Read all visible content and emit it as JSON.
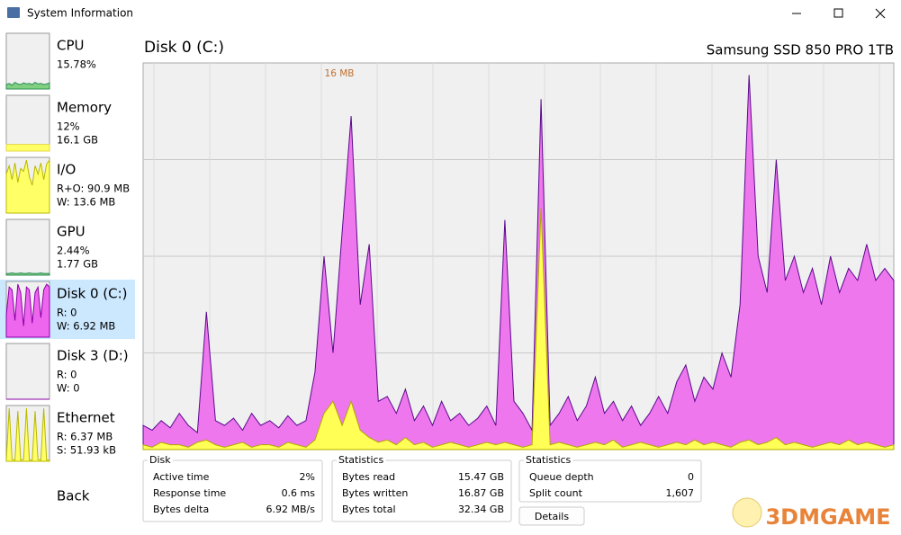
{
  "window_title": "System Information",
  "sidebar": [
    {
      "label": "CPU",
      "lines": [
        "15.78%"
      ],
      "spark_color": "#2e8b57",
      "spark": [
        8,
        10,
        7,
        12,
        9,
        8,
        11,
        9,
        10,
        8,
        12,
        9,
        10,
        8,
        9,
        11
      ]
    },
    {
      "label": "Memory",
      "lines": [
        "12%",
        "16.1 GB"
      ],
      "spark_color": "#e6d84a",
      "spark": [
        12,
        12,
        12,
        12,
        12,
        12,
        12,
        12,
        12,
        12,
        12,
        12,
        12,
        12,
        12,
        12
      ]
    },
    {
      "label": "I/O",
      "lines": [
        "R+O: 90.9 MB",
        "W: 13.6 MB"
      ],
      "spark_color": "#b8b800",
      "spark": [
        70,
        85,
        60,
        90,
        55,
        80,
        75,
        95,
        65,
        50,
        85,
        70,
        90,
        60,
        88,
        95
      ]
    },
    {
      "label": "GPU",
      "lines": [
        "2.44%",
        "1.77 GB"
      ],
      "spark_color": "#2e8b57",
      "spark": [
        3,
        3,
        4,
        3,
        3,
        4,
        3,
        3,
        4,
        3,
        3,
        3,
        4,
        3,
        3,
        3
      ]
    },
    {
      "label": "Disk 0 (C:)",
      "lines": [
        "R: 0",
        "W: 6.92 MB"
      ],
      "spark_color": "#8b00a8",
      "spark": [
        40,
        90,
        85,
        30,
        95,
        80,
        20,
        90,
        85,
        25,
        80,
        90,
        35,
        85,
        95,
        90
      ]
    },
    {
      "label": "Disk 3 (D:)",
      "lines": [
        "R: 0",
        "W: 0"
      ],
      "spark_color": "#8b00a8",
      "spark": [
        0,
        0,
        0,
        0,
        0,
        0,
        0,
        0,
        0,
        0,
        0,
        0,
        0,
        0,
        0,
        0
      ]
    },
    {
      "label": "Ethernet",
      "lines": [
        "R: 6.37 MB",
        "S: 51.93 kB"
      ],
      "spark_color": "#b8b800",
      "spark": [
        2,
        95,
        3,
        2,
        90,
        2,
        3,
        95,
        2,
        2,
        90,
        3,
        2,
        95,
        2,
        2
      ]
    }
  ],
  "selected": 4,
  "back": "Back",
  "device_title": "Disk 0 (C:)",
  "device_name": "Samsung SSD 850 PRO 1TB",
  "graph": {
    "max": {
      "value": 16,
      "label": "16 MB"
    },
    "write_values": [
      1,
      0.8,
      1.2,
      0.9,
      1.5,
      1,
      0.7,
      5.7,
      1.2,
      1,
      1.3,
      0.8,
      1.5,
      1,
      1.2,
      0.9,
      1.4,
      1,
      1.2,
      3.2,
      8,
      4,
      9,
      13.8,
      6,
      8.5,
      2,
      2.2,
      1.5,
      2.5,
      1.2,
      1.8,
      1,
      2,
      1.2,
      1.5,
      1,
      1.3,
      1.8,
      1,
      9.5,
      2,
      1.5,
      0.8,
      14.5,
      1,
      1.5,
      2.2,
      1.2,
      1.8,
      3,
      1.5,
      2,
      1.2,
      1.8,
      1,
      1.5,
      2.2,
      1.5,
      2.8,
      3.5,
      2,
      3,
      2.5,
      4,
      3,
      6,
      15.5,
      8,
      6.5,
      12,
      7,
      8,
      6.5,
      7.5,
      6,
      8,
      6.5,
      7.5,
      7,
      8.5,
      7,
      7.5,
      7
    ],
    "read_values": [
      0.2,
      0.1,
      0.3,
      0.2,
      0.2,
      0.1,
      0.3,
      0.4,
      0.2,
      0.1,
      0.2,
      0.3,
      0.1,
      0.2,
      0.2,
      0.1,
      0.3,
      0.2,
      0.1,
      0.4,
      1.5,
      2,
      1,
      2,
      0.8,
      0.5,
      0.3,
      0.4,
      0.2,
      0.5,
      0.2,
      0.3,
      0.1,
      0.2,
      0.3,
      0.2,
      0.1,
      0.2,
      0.3,
      0.2,
      0.3,
      0.2,
      0.1,
      0.2,
      10,
      0.2,
      0.3,
      0.2,
      0.1,
      0.2,
      0.3,
      0.2,
      0.4,
      0.1,
      0.2,
      0.3,
      0.2,
      0.1,
      0.2,
      0.3,
      0.2,
      0.4,
      0.2,
      0.3,
      0.2,
      0.1,
      0.3,
      0.4,
      0.2,
      0.3,
      0.5,
      0.2,
      0.3,
      0.2,
      0.1,
      0.2,
      0.3,
      0.2,
      0.4,
      0.2,
      0.3,
      0.2,
      0.1,
      0.2
    ]
  },
  "panels": [
    {
      "title": "Disk",
      "rows": [
        [
          "Active time",
          "2%"
        ],
        [
          "Response time",
          "0.6 ms"
        ],
        [
          "Bytes delta",
          "6.92 MB/s"
        ]
      ]
    },
    {
      "title": "Statistics",
      "rows": [
        [
          "Bytes read",
          "15.47 GB"
        ],
        [
          "Bytes written",
          "16.87 GB"
        ],
        [
          "Bytes total",
          "32.34 GB"
        ]
      ]
    },
    {
      "title": "Statistics",
      "rows": [
        [
          "Queue depth",
          "0"
        ],
        [
          "Split count",
          "1,607"
        ]
      ]
    }
  ],
  "details_button": "Details",
  "watermark": "3DMGAME"
}
